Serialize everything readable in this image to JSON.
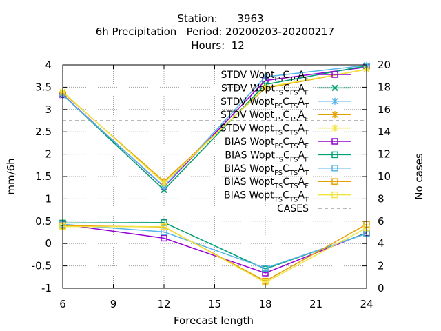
{
  "chart_data": {
    "type": "line",
    "title_lines": [
      "Station:      3963",
      "6h Precipitation   Period: 20200203-20200217",
      "Hours:  12"
    ],
    "xlabel": "Forecast length",
    "ylabel": "mm/6h",
    "y2label": "No cases",
    "xlim": [
      6,
      24
    ],
    "ylim": [
      -1,
      4
    ],
    "y2lim": [
      0,
      20
    ],
    "xticks": [
      "6",
      "9",
      "12",
      "15",
      "18",
      "21",
      "24"
    ],
    "yticks": [
      "-1",
      "-0.5",
      "0",
      "0.5",
      "1",
      "1.5",
      "2",
      "2.5",
      "3",
      "3.5",
      "4"
    ],
    "y2ticks": [
      "0",
      "2",
      "4",
      "6",
      "8",
      "10",
      "12",
      "14",
      "16",
      "18",
      "20"
    ],
    "grid": true,
    "legend_position": "top-right",
    "x": [
      6,
      12,
      18,
      24
    ],
    "series": [
      {
        "name": "STDV Wopt",
        "sub1": "FS",
        "sub2": "TS",
        "sub3": "F",
        "stat": "STDV",
        "marker": "square",
        "color": "#9400d3",
        "values": [
          3.33,
          1.27,
          3.65,
          3.95
        ]
      },
      {
        "name": "STDV Wopt",
        "sub1": "FS",
        "sub2": "FS",
        "sub3": "F",
        "stat": "STDV",
        "marker": "x",
        "color": "#009e73",
        "values": [
          3.33,
          1.2,
          3.56,
          3.98
        ]
      },
      {
        "name": "STDV Wopt",
        "sub1": "FS",
        "sub2": "TS",
        "sub3": "T",
        "stat": "STDV",
        "marker": "star",
        "color": "#56b4e9",
        "values": [
          3.32,
          1.28,
          3.73,
          3.99
        ]
      },
      {
        "name": "STDV Wopt",
        "sub1": "TS",
        "sub2": "TS",
        "sub3": "F",
        "stat": "STDV",
        "marker": "star",
        "color": "#e69f00",
        "values": [
          3.38,
          1.39,
          3.48,
          3.9
        ]
      },
      {
        "name": "STDV Wopt",
        "sub1": "TS",
        "sub2": "TS",
        "sub3": "T",
        "stat": "STDV",
        "marker": "star",
        "color": "#f0e442",
        "values": [
          3.4,
          1.35,
          3.5,
          3.9
        ]
      },
      {
        "name": "BIAS Wopt",
        "sub1": "FS",
        "sub2": "TS",
        "sub3": "F",
        "stat": "BIAS",
        "marker": "square",
        "color": "#9400d3",
        "values": [
          0.43,
          0.12,
          -0.66,
          0.24
        ]
      },
      {
        "name": "BIAS Wopt",
        "sub1": "FS",
        "sub2": "FS",
        "sub3": "F",
        "stat": "BIAS",
        "marker": "square",
        "color": "#009e73",
        "values": [
          0.46,
          0.47,
          -0.57,
          0.23
        ]
      },
      {
        "name": "BIAS Wopt",
        "sub1": "FS",
        "sub2": "TS",
        "sub3": "T",
        "stat": "BIAS",
        "marker": "square",
        "color": "#56b4e9",
        "values": [
          0.43,
          0.26,
          -0.55,
          0.22
        ]
      },
      {
        "name": "BIAS Wopt",
        "sub1": "TS",
        "sub2": "TS",
        "sub3": "F",
        "stat": "BIAS",
        "marker": "square",
        "color": "#e69f00",
        "values": [
          0.4,
          0.37,
          -0.84,
          0.43
        ]
      },
      {
        "name": "BIAS Wopt",
        "sub1": "TS",
        "sub2": "TS",
        "sub3": "T",
        "stat": "BIAS",
        "marker": "square",
        "color": "#f0e442",
        "values": [
          0.38,
          0.38,
          -0.87,
          0.35
        ]
      }
    ],
    "cases": {
      "name": "CASES",
      "axis": "y2",
      "color": "#a0a0a0",
      "value": 15
    }
  }
}
